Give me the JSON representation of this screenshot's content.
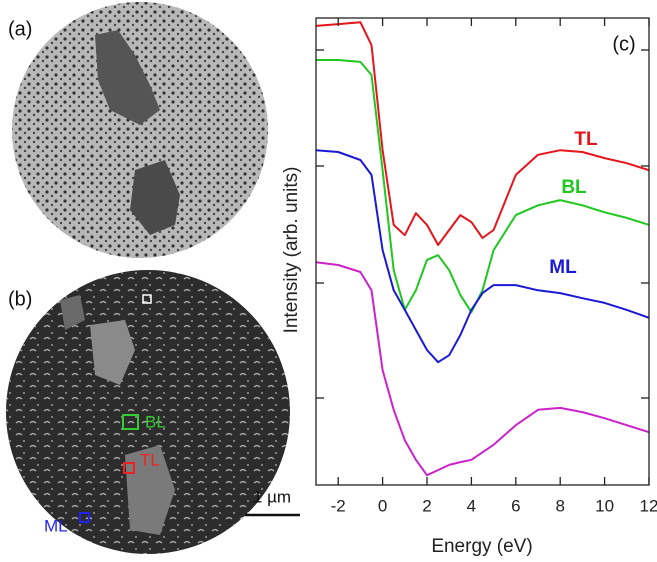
{
  "images": {
    "panel_a": "(a)",
    "panel_b": "(b)",
    "box_bl": "BL",
    "box_tl": "TL",
    "box_ml": "ML",
    "scale_bar": "1 µm"
  },
  "chart_data": {
    "type": "line",
    "panel": "(c)",
    "x_label": "Energy (eV)",
    "y_label": "Intensity (arb. units)",
    "x": [
      -3,
      -2,
      -1,
      -0.5,
      0,
      0.5,
      1,
      1.5,
      2,
      2.5,
      3,
      3.5,
      4,
      4.5,
      5,
      6,
      7,
      8,
      9,
      10,
      11,
      12
    ],
    "xlim": [
      -3,
      12
    ],
    "xticks": [
      -2,
      0,
      2,
      4,
      6,
      8,
      10,
      12
    ],
    "ylim": [
      0,
      100
    ],
    "series": [
      {
        "name": "TL",
        "color": "#e8141b",
        "values": [
          98.3,
          98.7,
          99.1,
          94.2,
          71.7,
          55.7,
          53.5,
          58.2,
          55.7,
          51.4,
          54.6,
          57.8,
          56.3,
          52.9,
          54.6,
          66.4,
          70.7,
          71.7,
          71.3,
          70,
          68.9,
          67.4
        ]
      },
      {
        "name": "BL",
        "color": "#1ec81e",
        "values": [
          91.0,
          91.0,
          90.6,
          87.8,
          67.4,
          46,
          37.5,
          41.7,
          48.2,
          49.2,
          46,
          40.7,
          37,
          41.7,
          50.3,
          57.8,
          59.9,
          61,
          59.9,
          58.4,
          57.2,
          55.7
        ]
      },
      {
        "name": "ML",
        "color": "#1a1ad6",
        "values": [
          71.7,
          71.3,
          69.6,
          66.4,
          50.3,
          41.7,
          37.5,
          33.2,
          28.9,
          26.3,
          27.8,
          32.1,
          37.5,
          41.1,
          42.8,
          42.8,
          41.7,
          41.1,
          40,
          39,
          37.5,
          35.8
        ]
      },
      {
        "color": "#cc22cc",
        "values": [
          47.7,
          47.1,
          45.6,
          41.7,
          24.6,
          16.1,
          9.6,
          5.4,
          2.1,
          3.2,
          4.3,
          4.9,
          5.4,
          7,
          8.6,
          12.8,
          16.1,
          16.5,
          15.6,
          14.3,
          12.8,
          11.3
        ]
      }
    ]
  }
}
